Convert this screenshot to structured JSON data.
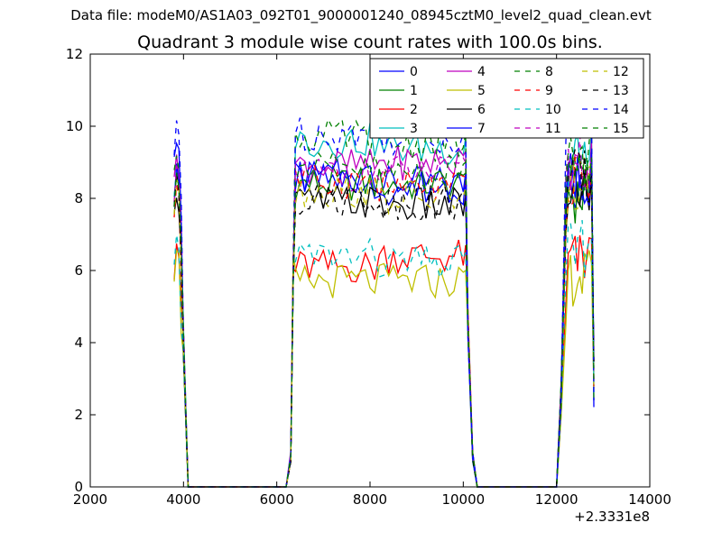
{
  "figure": {
    "suptitle": "Data file: modeM0/AS1A03_092T01_9000001240_08945cztM0_level2_quad_clean.evt",
    "title": "Quadrant 3 module wise count rates with 100.0s bins.",
    "x_offset_label": "+2.3331e8"
  },
  "chart_data": {
    "type": "line",
    "title": "Quadrant 3 module wise count rates with 100.0s bins.",
    "xlabel": "",
    "ylabel": "",
    "xlim": [
      2000,
      14000
    ],
    "ylim": [
      0,
      12
    ],
    "xticks": [
      2000,
      4000,
      6000,
      8000,
      10000,
      12000,
      14000
    ],
    "yticks": [
      0,
      2,
      4,
      6,
      8,
      10,
      12
    ],
    "grid": false,
    "legend_position": "top-right",
    "legend_columns": 4,
    "x_offset": "+2.3331e8",
    "series": [
      {
        "name": "0",
        "color": "#0000ff",
        "style": "solid",
        "levels": [
          9.5,
          8.5,
          0,
          0,
          8.4,
          8.5,
          9.0
        ]
      },
      {
        "name": "1",
        "color": "#008000",
        "style": "solid",
        "levels": [
          8.5,
          8.4,
          0,
          0,
          8.4,
          8.1,
          8.6
        ]
      },
      {
        "name": "2",
        "color": "#ff0000",
        "style": "solid",
        "levels": [
          6.6,
          6.1,
          0,
          0,
          6.4,
          6.3,
          6.5
        ]
      },
      {
        "name": "3",
        "color": "#00bfbf",
        "style": "solid",
        "levels": [
          8.7,
          9.6,
          0,
          0,
          9.4,
          9.1,
          9.4
        ]
      },
      {
        "name": "4",
        "color": "#bf00bf",
        "style": "solid",
        "levels": [
          9.0,
          8.9,
          0,
          0,
          9.0,
          8.8,
          9.2
        ]
      },
      {
        "name": "5",
        "color": "#bfbf00",
        "style": "solid",
        "levels": [
          6.5,
          5.7,
          0,
          0,
          5.7,
          5.8,
          6.0
        ]
      },
      {
        "name": "6",
        "color": "#000000",
        "style": "solid",
        "levels": [
          8.0,
          7.9,
          0,
          0,
          7.8,
          8.2,
          8.5
        ]
      },
      {
        "name": "7",
        "color": "#0000ff",
        "style": "solid",
        "levels": [
          8.6,
          8.6,
          0,
          0,
          8.3,
          8.6,
          8.8
        ]
      },
      {
        "name": "8",
        "color": "#008000",
        "style": "dashed",
        "levels": [
          9.1,
          9.7,
          0,
          0,
          9.5,
          9.5,
          9.6
        ]
      },
      {
        "name": "9",
        "color": "#ff0000",
        "style": "dashed",
        "levels": [
          8.2,
          8.5,
          0,
          0,
          8.3,
          8.6,
          8.5
        ]
      },
      {
        "name": "10",
        "color": "#00bfbf",
        "style": "dashed",
        "levels": [
          6.6,
          6.4,
          0,
          0,
          6.2,
          6.6,
          6.7
        ]
      },
      {
        "name": "11",
        "color": "#bf00bf",
        "style": "dashed",
        "levels": [
          8.8,
          8.7,
          0,
          0,
          8.7,
          9.0,
          9.1
        ]
      },
      {
        "name": "12",
        "color": "#bfbf00",
        "style": "dashed",
        "levels": [
          8.3,
          8.2,
          0,
          0,
          8.0,
          8.4,
          8.6
        ]
      },
      {
        "name": "13",
        "color": "#000000",
        "style": "dashed",
        "levels": [
          8.3,
          8.0,
          0,
          0,
          7.9,
          8.6,
          8.7
        ]
      },
      {
        "name": "14",
        "color": "#0000ff",
        "style": "dashed",
        "levels": [
          9.8,
          9.8,
          0,
          0,
          9.7,
          10.3,
          10.0
        ]
      },
      {
        "name": "15",
        "color": "#008000",
        "style": "dashed",
        "levels": [
          8.6,
          8.8,
          0,
          0,
          8.7,
          8.8,
          8.9
        ]
      }
    ],
    "segments": [
      {
        "x_start": 3800,
        "x_end": 4000
      },
      {
        "x_start": 6400,
        "x_end": 10100
      },
      {
        "x_start": 12200,
        "x_end": 12800
      }
    ],
    "gaps_zero": [
      4100,
      6200,
      10300,
      12000
    ]
  }
}
